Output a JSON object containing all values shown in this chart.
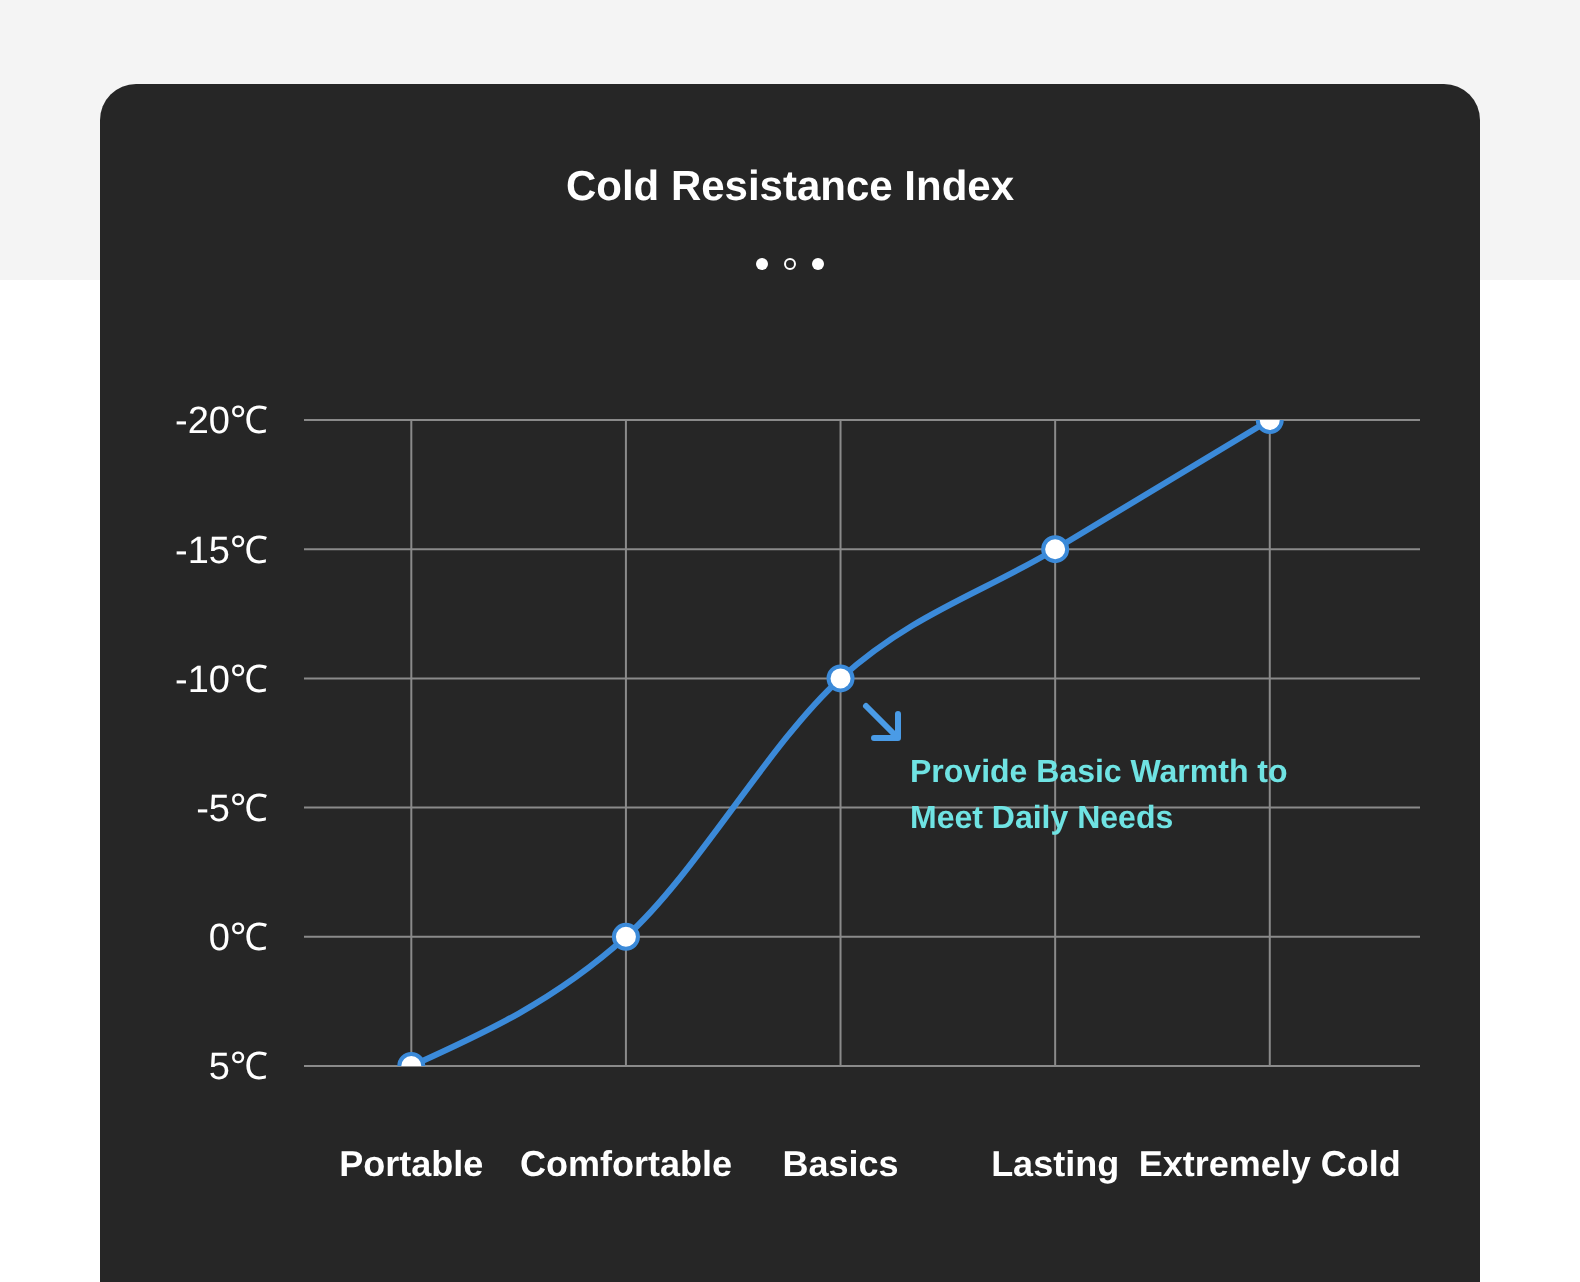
{
  "chart_data": {
    "type": "line",
    "title": "Cold Resistance Index",
    "categories": [
      "Portable",
      "Comfortable",
      "Basics",
      "Lasting",
      "Extremely Cold"
    ],
    "series": [
      {
        "color": "#3b8ad9",
        "values": [
          5,
          0,
          -10,
          -15,
          -20
        ]
      }
    ],
    "ylim": [
      5,
      -20
    ],
    "yticks": [
      {
        "value": 5,
        "label": "5℃"
      },
      {
        "value": 0,
        "label": "0℃"
      },
      {
        "value": -5,
        "label": "-5℃"
      },
      {
        "value": -10,
        "label": "-10℃"
      },
      {
        "value": -15,
        "label": "-15℃"
      },
      {
        "value": -20,
        "label": "-20℃"
      }
    ],
    "grid": true,
    "marker": "circle",
    "line_style": "solid",
    "annotations": [
      "Provide Basic Warmth to Meet Daily Needs"
    ]
  }
}
